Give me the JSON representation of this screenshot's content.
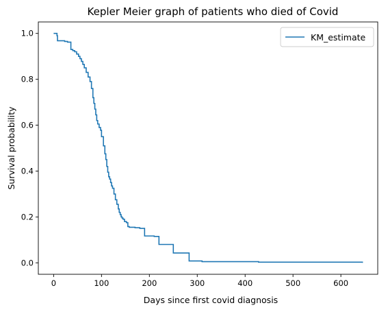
{
  "chart_data": {
    "type": "line",
    "title": "Kepler Meier graph of patients who died of Covid",
    "xlabel": "Days since first covid diagnosis",
    "ylabel": "Survival probability",
    "xlim": [
      -32,
      677
    ],
    "ylim": [
      -0.05,
      1.05
    ],
    "xticks": [
      0,
      100,
      200,
      300,
      400,
      500,
      600
    ],
    "yticks": [
      0.0,
      0.2,
      0.4,
      0.6,
      0.8,
      1.0
    ],
    "xtick_labels": [
      "0",
      "100",
      "200",
      "300",
      "400",
      "500",
      "600"
    ],
    "ytick_labels": [
      "0.0",
      "0.2",
      "0.4",
      "0.6",
      "0.8",
      "1.0"
    ],
    "grid": false,
    "legend_position": "upper right",
    "series": [
      {
        "name": "KM_estimate",
        "color": "#1f77b4",
        "step": "post",
        "x": [
          0,
          7,
          8,
          23,
          29,
          36,
          40,
          44,
          48,
          52,
          55,
          58,
          61,
          64,
          68,
          72,
          76,
          79,
          82,
          84,
          86,
          88,
          90,
          92,
          95,
          98,
          100,
          104,
          107,
          109,
          111,
          113,
          115,
          117,
          119,
          121,
          123,
          126,
          129,
          132,
          135,
          137,
          139,
          141,
          143,
          145,
          148,
          152,
          155,
          158,
          170,
          180,
          190,
          210,
          220,
          250,
          283,
          310,
          428,
          645
        ],
        "y": [
          1.0,
          0.99,
          0.968,
          0.965,
          0.962,
          0.93,
          0.925,
          0.92,
          0.91,
          0.9,
          0.89,
          0.878,
          0.865,
          0.85,
          0.83,
          0.81,
          0.79,
          0.76,
          0.72,
          0.695,
          0.67,
          0.645,
          0.62,
          0.605,
          0.59,
          0.578,
          0.55,
          0.51,
          0.475,
          0.45,
          0.42,
          0.395,
          0.375,
          0.365,
          0.35,
          0.335,
          0.325,
          0.3,
          0.275,
          0.255,
          0.235,
          0.22,
          0.21,
          0.2,
          0.195,
          0.19,
          0.18,
          0.175,
          0.158,
          0.155,
          0.153,
          0.15,
          0.117,
          0.115,
          0.08,
          0.043,
          0.008,
          0.005,
          0.003,
          0.0
        ]
      }
    ]
  }
}
